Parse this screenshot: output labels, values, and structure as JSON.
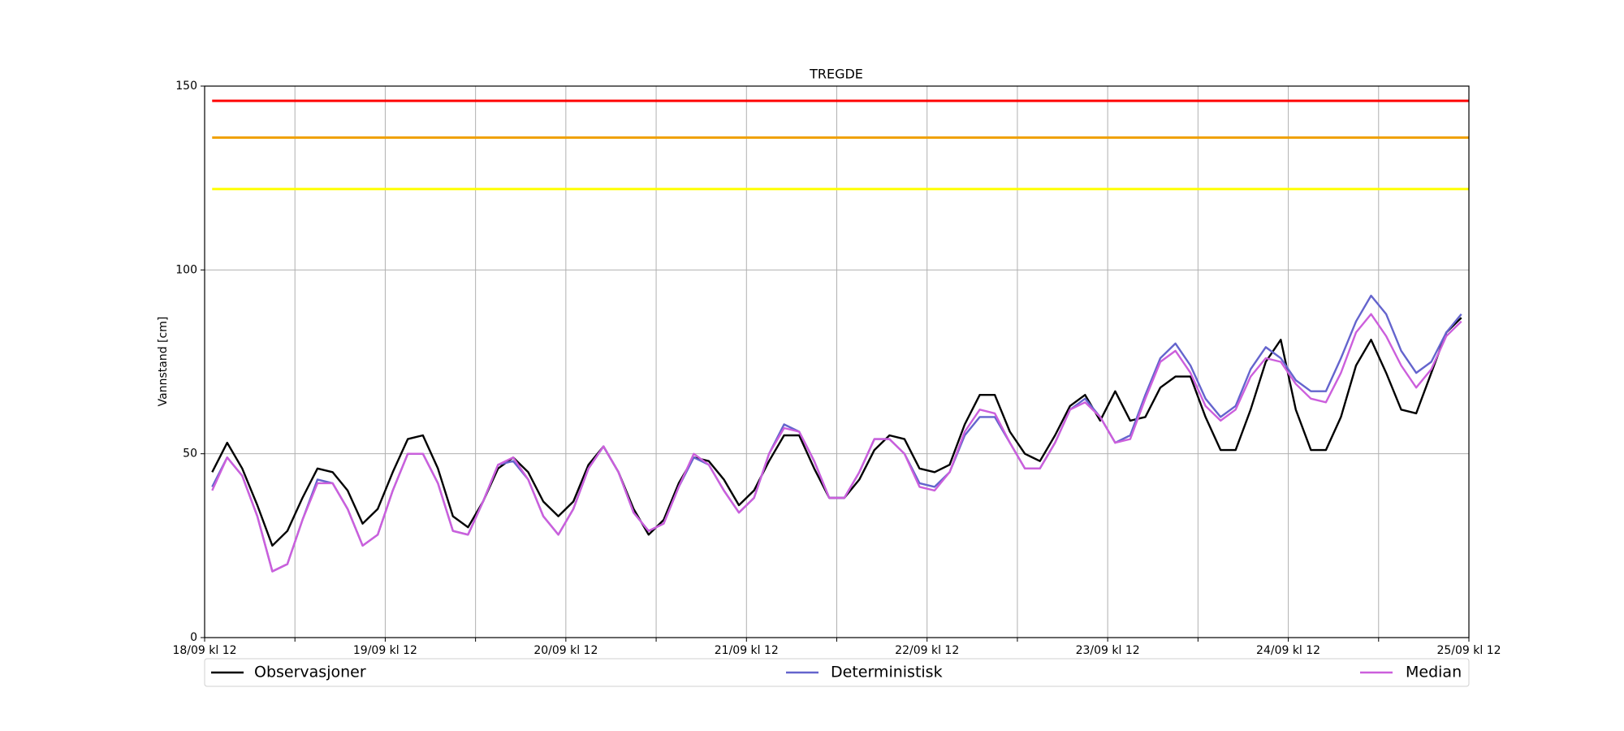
{
  "chart_data": {
    "type": "line",
    "title": "TREGDE",
    "ylabel": "Vannstand [cm]",
    "x": [
      1,
      3,
      5,
      7,
      9,
      11,
      13,
      15,
      17,
      19,
      21,
      23,
      25,
      27,
      29,
      31,
      33,
      35,
      37,
      39,
      41,
      43,
      45,
      47,
      49,
      51,
      53,
      55,
      57,
      59,
      61,
      63,
      65,
      67,
      69,
      71,
      73,
      75,
      77,
      79,
      81,
      83,
      85,
      87,
      89,
      91,
      93,
      95,
      97,
      99,
      101,
      103,
      105,
      107,
      109,
      111,
      113,
      115,
      117,
      119,
      121,
      123,
      125,
      127,
      129,
      131,
      133,
      135,
      137,
      139,
      141,
      143,
      145,
      147,
      149,
      151,
      153,
      155,
      157,
      159,
      161,
      163,
      165,
      167
    ],
    "series": [
      {
        "name": "Observasjoner",
        "color": "#000000",
        "values": [
          45,
          53,
          46,
          36,
          25,
          29,
          38,
          46,
          45,
          40,
          31,
          35,
          45,
          54,
          55,
          46,
          33,
          30,
          37,
          46,
          49,
          45,
          37,
          33,
          37,
          47,
          52,
          45,
          35,
          28,
          32,
          42,
          49,
          48,
          43,
          36,
          40,
          48,
          55,
          55,
          46,
          38,
          38,
          43,
          51,
          55,
          54,
          46,
          45,
          47,
          58,
          66,
          66,
          56,
          50,
          48,
          55,
          63,
          66,
          59,
          67,
          59,
          60,
          68,
          71,
          71,
          60,
          51,
          51,
          62,
          75,
          81,
          62,
          51,
          51,
          60,
          74,
          81,
          72,
          62,
          61,
          72,
          83,
          87
        ]
      },
      {
        "name": "Deterministisk",
        "color": "#6464cd",
        "values": [
          41,
          49,
          44,
          33,
          18,
          20,
          32,
          43,
          42,
          35,
          25,
          28,
          40,
          50,
          50,
          42,
          29,
          28,
          37,
          47,
          48,
          43,
          33,
          28,
          35,
          46,
          52,
          45,
          34,
          29,
          31,
          41,
          49,
          47,
          40,
          34,
          38,
          50,
          58,
          56,
          48,
          38,
          38,
          45,
          54,
          54,
          50,
          42,
          41,
          45,
          55,
          60,
          60,
          53,
          46,
          46,
          53,
          62,
          65,
          60,
          53,
          55,
          66,
          76,
          80,
          74,
          65,
          60,
          63,
          73,
          79,
          76,
          70,
          67,
          67,
          76,
          86,
          93,
          88,
          78,
          72,
          75,
          83,
          88
        ]
      },
      {
        "name": "Median",
        "color": "#cc5fdc",
        "values": [
          40,
          49,
          44,
          33,
          18,
          20,
          32,
          42,
          42,
          35,
          25,
          28,
          40,
          50,
          50,
          42,
          29,
          28,
          37,
          47,
          49,
          43,
          33,
          28,
          35,
          46,
          52,
          45,
          34,
          29,
          31,
          41,
          50,
          47,
          40,
          34,
          38,
          50,
          57,
          56,
          48,
          38,
          38,
          45,
          54,
          54,
          50,
          41,
          40,
          45,
          56,
          62,
          61,
          53,
          46,
          46,
          53,
          62,
          64,
          60,
          53,
          54,
          65,
          75,
          78,
          72,
          63,
          59,
          62,
          71,
          76,
          75,
          69,
          65,
          64,
          72,
          83,
          88,
          82,
          74,
          68,
          73,
          82,
          86
        ]
      }
    ],
    "hlines": [
      {
        "value": 146,
        "color": "#ff0000"
      },
      {
        "value": 136,
        "color": "#f0a000"
      },
      {
        "value": 122,
        "color": "#ffff00"
      }
    ],
    "xlim": [
      0,
      168
    ],
    "xticks": [
      {
        "value": 0,
        "label": "18/09 kl 12"
      },
      {
        "value": 24,
        "label": "19/09 kl 12"
      },
      {
        "value": 48,
        "label": "20/09 kl 12"
      },
      {
        "value": 72,
        "label": "21/09 kl 12"
      },
      {
        "value": 96,
        "label": "22/09 kl 12"
      },
      {
        "value": 120,
        "label": "23/09 kl 12"
      },
      {
        "value": 144,
        "label": "24/09 kl 12"
      },
      {
        "value": 168,
        "label": "25/09 kl 12"
      }
    ],
    "xminor": [
      12,
      36,
      60,
      84,
      108,
      132,
      156
    ],
    "ylim": [
      0,
      150
    ],
    "yticks": [
      0,
      50,
      100,
      150
    ],
    "grid": true
  }
}
